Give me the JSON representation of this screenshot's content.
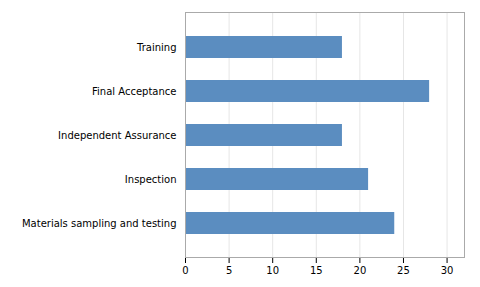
{
  "chart_data": {
    "type": "bar",
    "orientation": "horizontal",
    "categories": [
      "Materials sampling and testing",
      "Inspection",
      "Independent Assurance",
      "Final Acceptance",
      "Training"
    ],
    "values": [
      24,
      21,
      18,
      28,
      18
    ],
    "color": "#5b8dc0",
    "xlim": [
      0,
      32
    ],
    "xticks": [
      0,
      5,
      10,
      15,
      20,
      25,
      30
    ],
    "grid": true
  }
}
